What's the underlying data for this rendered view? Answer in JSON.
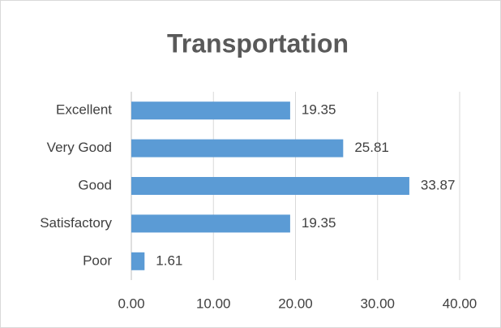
{
  "chart_data": {
    "type": "bar",
    "orientation": "horizontal",
    "title": "Transportation",
    "categories": [
      "Excellent",
      "Very Good",
      "Good",
      "Satisfactory",
      "Poor"
    ],
    "values": [
      19.35,
      25.81,
      33.87,
      19.35,
      1.61
    ],
    "color": "#5b9bd5",
    "xlim": [
      0,
      40
    ],
    "xticks": [
      {
        "value": 0,
        "label": "0.00"
      },
      {
        "value": 10,
        "label": "10.00"
      },
      {
        "value": 20,
        "label": "20.00"
      },
      {
        "value": 30,
        "label": "30.00"
      },
      {
        "value": 40,
        "label": "40.00"
      }
    ],
    "grid": true
  }
}
